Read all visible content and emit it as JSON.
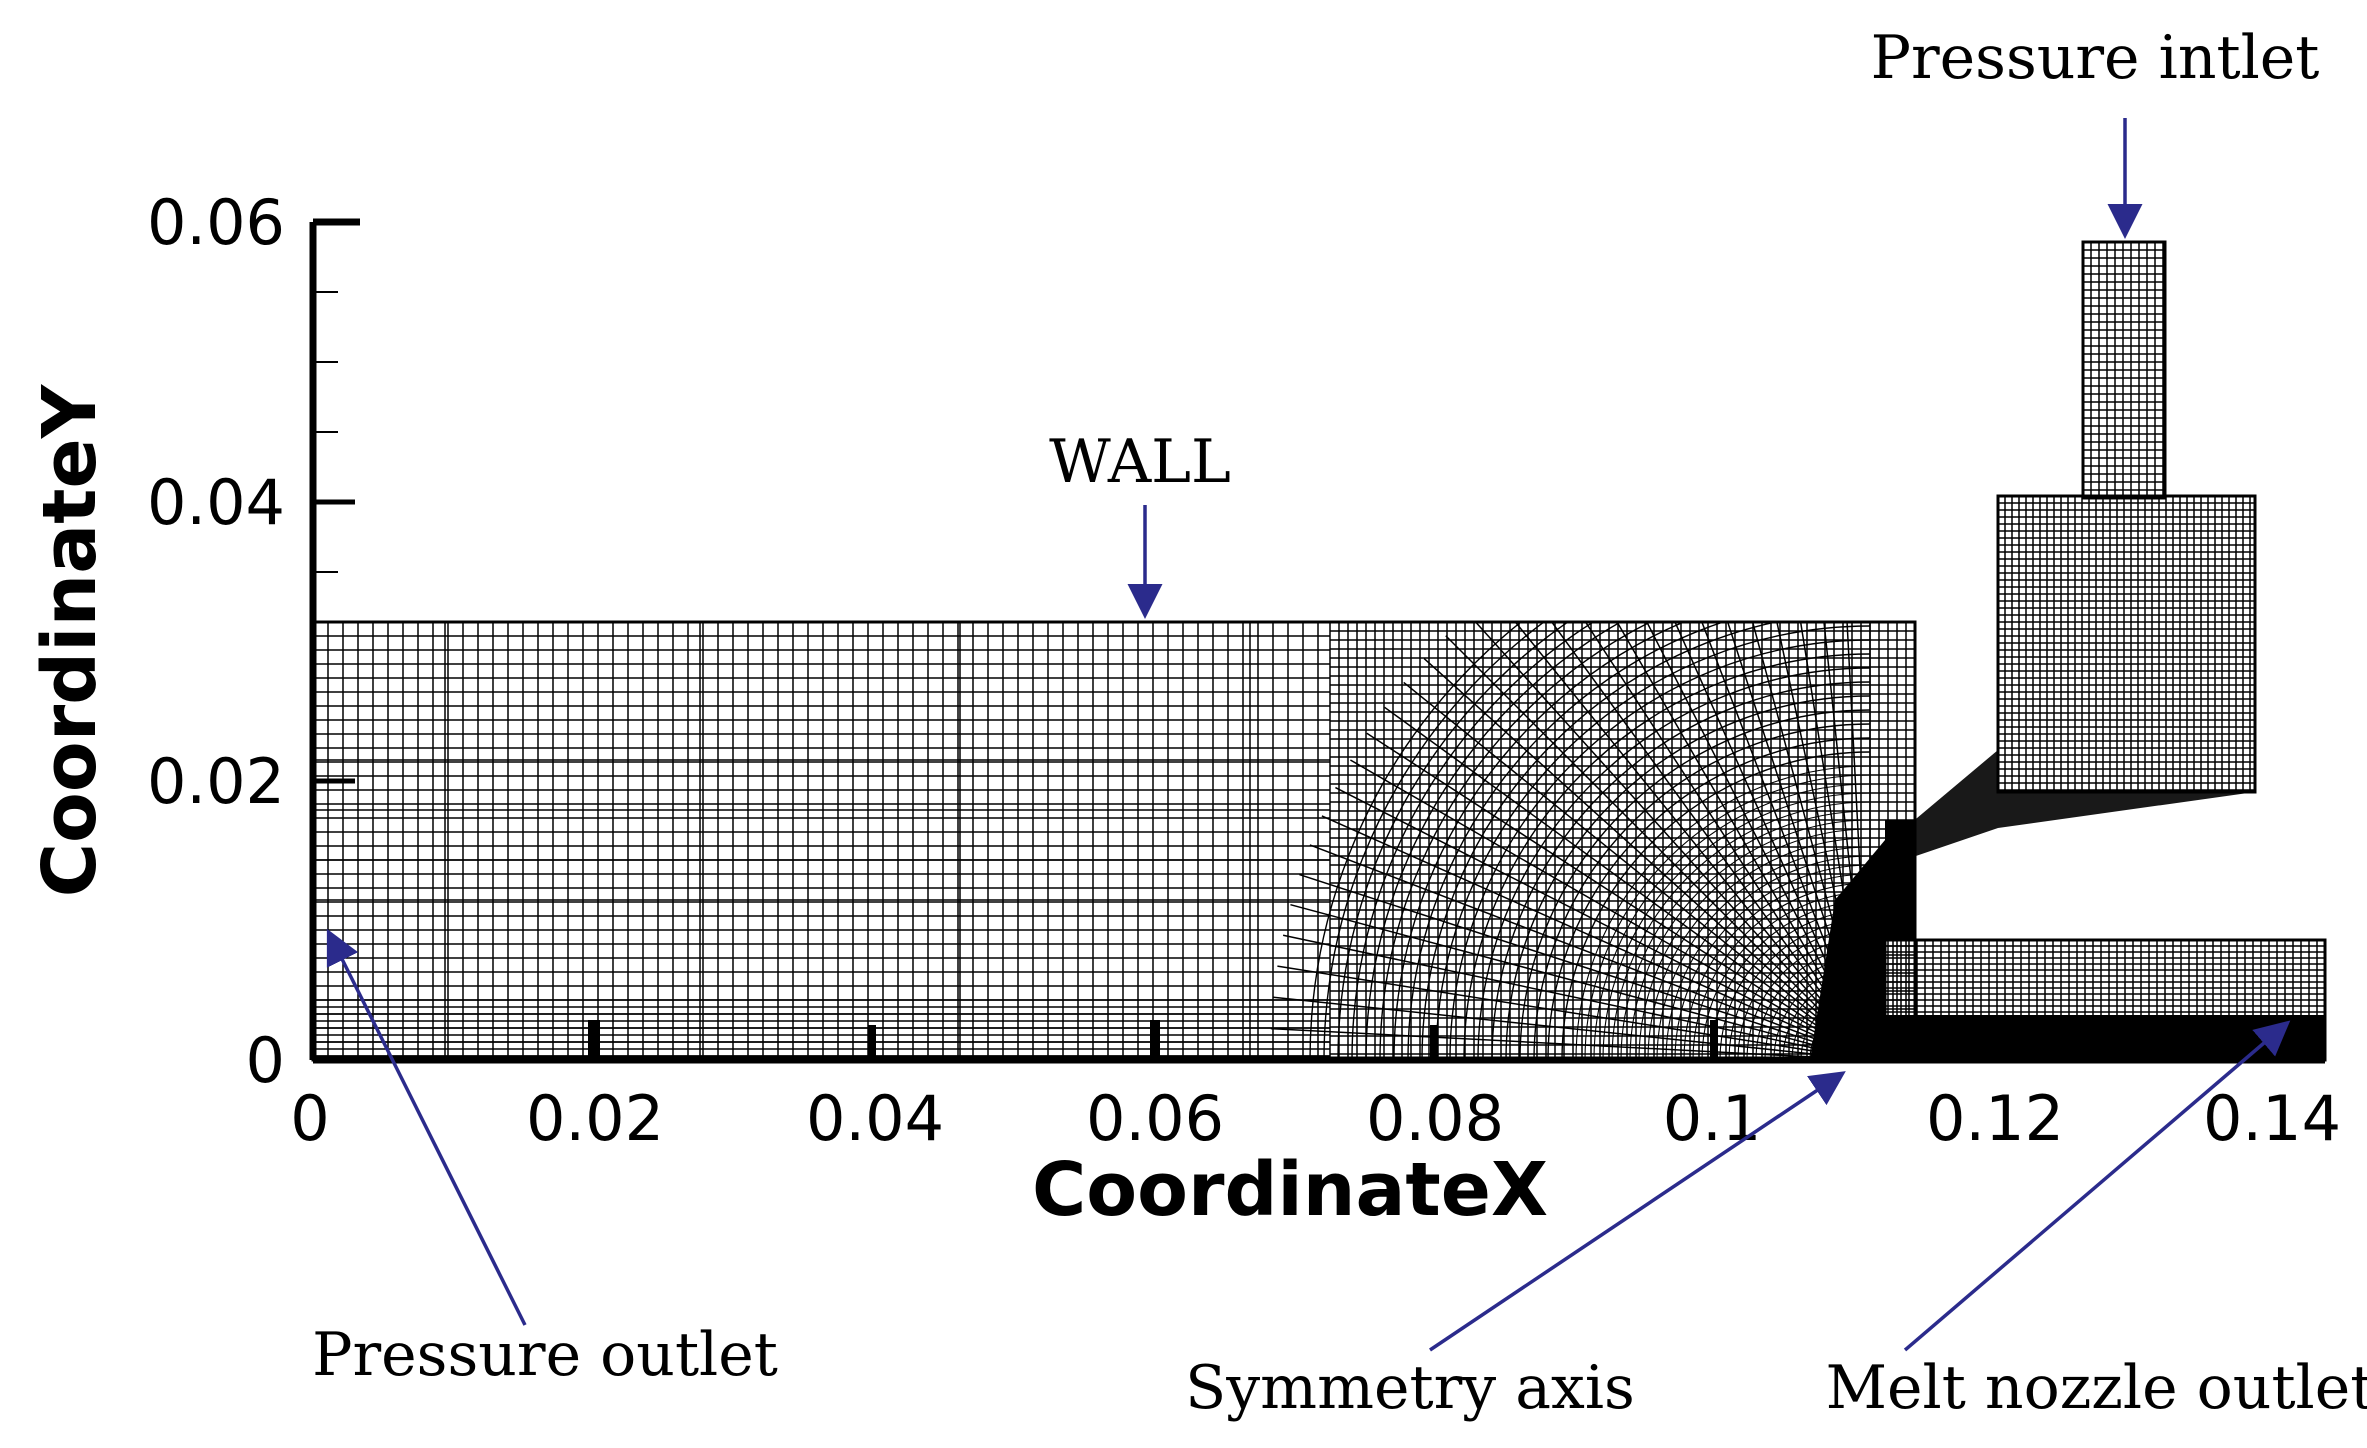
{
  "axes": {
    "xlabel": "CoordinateX",
    "ylabel": "CoordinateY",
    "xticks": [
      "0",
      "0.02",
      "0.04",
      "0.06",
      "0.08",
      "0.1",
      "0.12",
      "0.14"
    ],
    "yticks": [
      "0",
      "0.02",
      "0.04",
      "0.06"
    ],
    "xlim": [
      0,
      0.143
    ],
    "ylim": [
      0,
      0.06
    ]
  },
  "annotations": {
    "wall": "WALL",
    "pressure_inlet": "Pressure intlet",
    "pressure_outlet": "Pressure outlet",
    "symmetry_axis": "Symmetry axis",
    "melt_nozzle_outlet": "Melt nozzle outlet"
  },
  "colors": {
    "mesh": "#000000",
    "arrow": "#2b2b8c",
    "background": "#ffffff"
  }
}
